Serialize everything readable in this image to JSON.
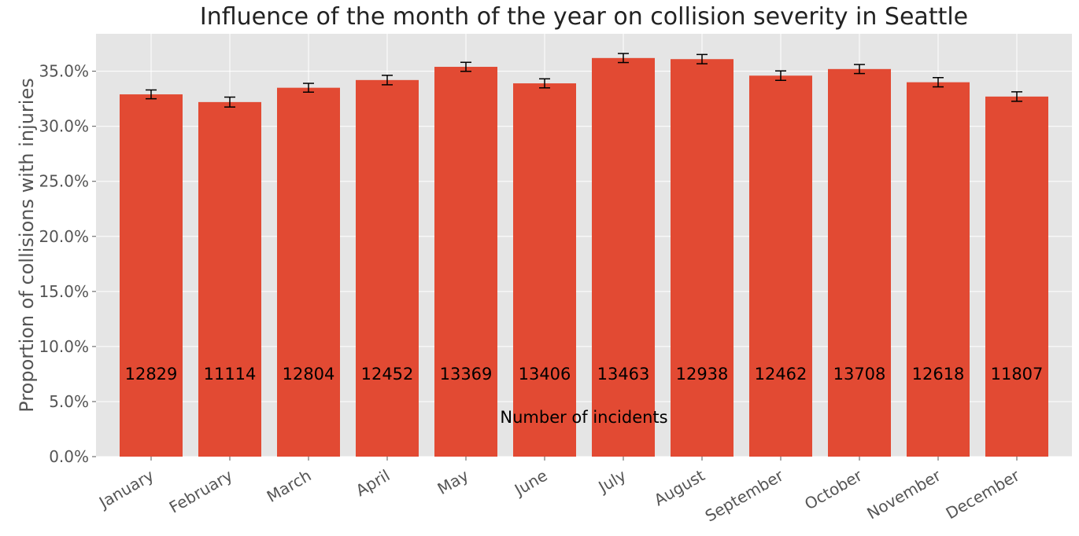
{
  "chart_data": {
    "type": "bar",
    "title": "Influence of the month of the year on collision severity in Seattle",
    "ylabel": "Proportion of collisions with injuries",
    "xlabel": "",
    "ylim": [
      0,
      0.384
    ],
    "yticks": [
      0.0,
      0.05,
      0.1,
      0.15,
      0.2,
      0.25,
      0.3,
      0.35
    ],
    "ytick_labels": [
      "0.0%",
      "5.0%",
      "10.0%",
      "15.0%",
      "20.0%",
      "25.0%",
      "30.0%",
      "35.0%"
    ],
    "categories": [
      "January",
      "February",
      "March",
      "April",
      "May",
      "June",
      "July",
      "August",
      "September",
      "October",
      "November",
      "December"
    ],
    "values": [
      0.329,
      0.322,
      0.335,
      0.342,
      0.354,
      0.339,
      0.362,
      0.361,
      0.346,
      0.352,
      0.34,
      0.327
    ],
    "error": [
      0.004,
      0.0045,
      0.004,
      0.0043,
      0.0041,
      0.0041,
      0.0041,
      0.0042,
      0.0043,
      0.0041,
      0.0042,
      0.0043
    ],
    "counts": [
      "12829",
      "11114",
      "12804",
      "12452",
      "13369",
      "13406",
      "13463",
      "12938",
      "12462",
      "13708",
      "12618",
      "11807"
    ],
    "annotation": "Number of incidents",
    "bar_color": "#E24A33",
    "background_color": "#E5E5E5",
    "grid": true
  }
}
